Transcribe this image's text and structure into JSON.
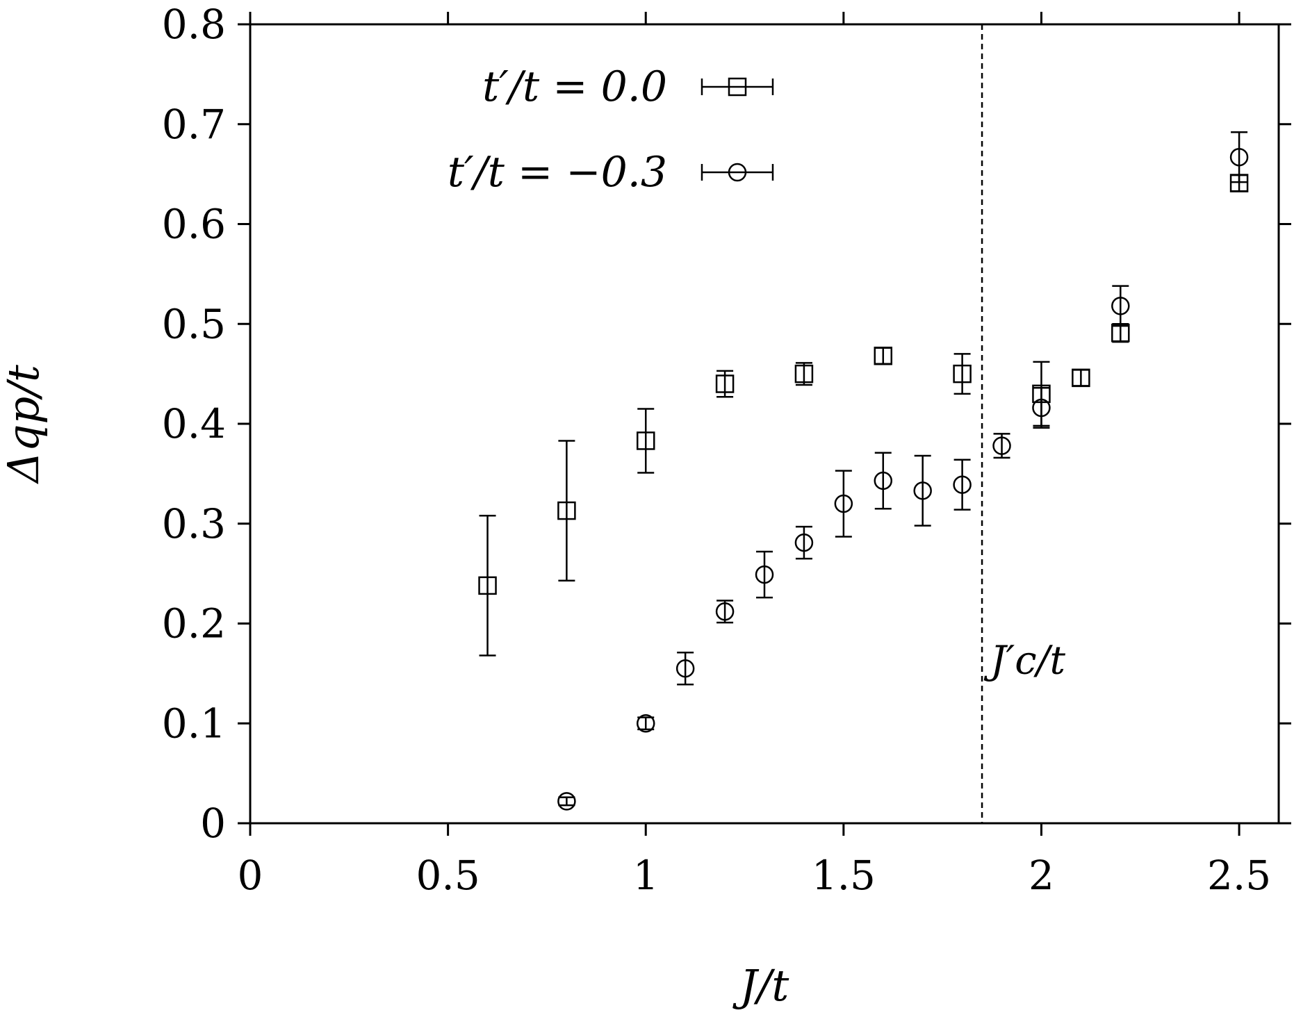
{
  "chart_data": {
    "type": "scatter",
    "xlabel": "J/t",
    "ylabel": "Δqp/t",
    "xlim": [
      0,
      2.6
    ],
    "ylim": [
      0,
      0.8
    ],
    "xticks": [
      0,
      0.5,
      1,
      1.5,
      2,
      2.5
    ],
    "xtick_labels": [
      "0",
      "0.5",
      "1",
      "1.5",
      "2",
      "2.5"
    ],
    "yticks": [
      0,
      0.1,
      0.2,
      0.3,
      0.4,
      0.5,
      0.6,
      0.7,
      0.8
    ],
    "ytick_labels": [
      "0",
      "0.1",
      "0.2",
      "0.3",
      "0.4",
      "0.5",
      "0.6",
      "0.7",
      "0.8"
    ],
    "grid": false,
    "legend_position": "top-left",
    "series": [
      {
        "name": "t′/t = 0.0",
        "marker": "square",
        "points": [
          {
            "x": 0.6,
            "y": 0.238,
            "err": 0.07
          },
          {
            "x": 0.8,
            "y": 0.313,
            "err": 0.07
          },
          {
            "x": 1.0,
            "y": 0.383,
            "err": 0.032
          },
          {
            "x": 1.2,
            "y": 0.44,
            "err": 0.013
          },
          {
            "x": 1.4,
            "y": 0.45,
            "err": 0.011
          },
          {
            "x": 1.6,
            "y": 0.468,
            "err": 0.008
          },
          {
            "x": 1.8,
            "y": 0.45,
            "err": 0.02
          },
          {
            "x": 2.0,
            "y": 0.43,
            "err": 0.032
          },
          {
            "x": 2.1,
            "y": 0.446,
            "err": 0.008
          },
          {
            "x": 2.2,
            "y": 0.491,
            "err": 0.009
          },
          {
            "x": 2.5,
            "y": 0.641,
            "err": 0.008
          }
        ]
      },
      {
        "name": "t′/t = −0.3",
        "marker": "circle",
        "points": [
          {
            "x": 0.8,
            "y": 0.022,
            "err": 0.004
          },
          {
            "x": 1.0,
            "y": 0.1,
            "err": 0.006
          },
          {
            "x": 1.1,
            "y": 0.155,
            "err": 0.016
          },
          {
            "x": 1.2,
            "y": 0.212,
            "err": 0.011
          },
          {
            "x": 1.3,
            "y": 0.249,
            "err": 0.023
          },
          {
            "x": 1.4,
            "y": 0.281,
            "err": 0.016
          },
          {
            "x": 1.5,
            "y": 0.32,
            "err": 0.033
          },
          {
            "x": 1.6,
            "y": 0.343,
            "err": 0.028
          },
          {
            "x": 1.7,
            "y": 0.333,
            "err": 0.035
          },
          {
            "x": 1.8,
            "y": 0.339,
            "err": 0.025
          },
          {
            "x": 1.9,
            "y": 0.378,
            "err": 0.012
          },
          {
            "x": 2.0,
            "y": 0.416,
            "err": 0.02
          },
          {
            "x": 2.2,
            "y": 0.518,
            "err": 0.02
          },
          {
            "x": 2.5,
            "y": 0.667,
            "err": 0.025
          }
        ]
      }
    ],
    "vline": {
      "x": 1.85,
      "style": "dashed",
      "label": "J′c/t"
    }
  }
}
